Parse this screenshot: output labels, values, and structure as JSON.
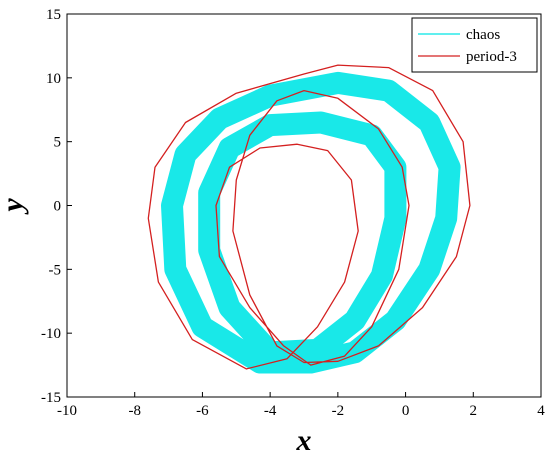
{
  "chart_data": {
    "type": "line",
    "x_label": "x",
    "y_label": "y",
    "xlim": [
      -10,
      4
    ],
    "xticks": [
      -10,
      -8,
      -6,
      -4,
      -2,
      0,
      2,
      4
    ],
    "ylim": [
      -15,
      15
    ],
    "yticks": [
      -15,
      -10,
      -5,
      0,
      5,
      10,
      15
    ],
    "legend": "upper right",
    "series": [
      {
        "name": "chaos",
        "color": "#00e5e5",
        "x": [
          -4.3,
          -6,
          -6.8,
          -6.9,
          -6.5,
          -5.5,
          -4,
          -2,
          -0.5,
          0.7,
          1.3,
          1.2,
          0.7,
          -0.3,
          -1.5,
          -2.8,
          -4.3,
          null,
          -4,
          -5.2,
          -5.8,
          -5.8,
          -5.2,
          -4,
          -2.5,
          -1,
          -0.3,
          -0.3,
          -0.7,
          -1.5,
          -2.6,
          -4
        ],
        "values": [
          -12.3,
          -9.5,
          -5,
          0,
          4,
          6.8,
          8.6,
          9.6,
          9,
          6.5,
          3,
          -1,
          -5,
          -9,
          -11.5,
          -12.3,
          -12.3,
          null,
          -11.5,
          -8,
          -3.5,
          1,
          4.5,
          6.3,
          6.5,
          5.5,
          3,
          -1,
          -5.5,
          -9,
          -11.3,
          -11.5
        ]
      },
      {
        "name": "period-3",
        "color": "#d42020",
        "x": [
          -4.7,
          -6.3,
          -7.3,
          -7.6,
          -7.4,
          -6.5,
          -5,
          -3,
          -2,
          -0.5,
          0.8,
          1.7,
          1.9,
          1.5,
          0.5,
          -0.8,
          -2,
          -3,
          -3.8,
          -4.6,
          -5.1,
          -5,
          -4.6,
          -3.8,
          -3,
          -2,
          -0.8,
          -0.1,
          0.1,
          -0.2,
          -1,
          -1.8,
          -2.8,
          -3.6,
          -4.6,
          -5.5,
          -5.6,
          -5.2,
          -4.3,
          -3.2,
          -2.3,
          -1.6,
          -1.4,
          -1.8,
          -2.6,
          -3.5,
          -4.7
        ],
        "values": [
          -12.8,
          -10.5,
          -6,
          -1,
          3,
          6.5,
          8.8,
          10.3,
          11,
          10.8,
          9,
          5,
          0,
          -4,
          -8,
          -11,
          -12.2,
          -12.3,
          -11,
          -7,
          -2,
          2,
          5.5,
          8.2,
          9,
          8.4,
          6,
          3,
          0,
          -5,
          -9.5,
          -11.8,
          -12.5,
          -11,
          -8,
          -4,
          0,
          3,
          4.5,
          4.8,
          4.3,
          2,
          -2,
          -6,
          -9.5,
          -12,
          -12.8
        ]
      }
    ]
  }
}
